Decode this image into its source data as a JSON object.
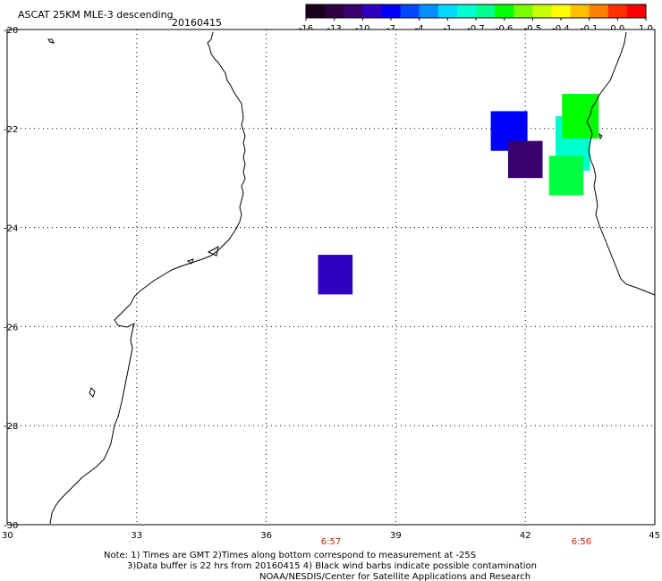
{
  "header": {
    "title": "ASCAT 25KM MLE-3 descending",
    "date": "20160415"
  },
  "colorbar": {
    "colors": [
      "#1a001a",
      "#2d0040",
      "#3a0070",
      "#3000c0",
      "#0000ff",
      "#0048ff",
      "#0090ff",
      "#00d8ff",
      "#00ffd0",
      "#00ff90",
      "#00ff00",
      "#78ff00",
      "#c8ff00",
      "#ffff00",
      "#ffc000",
      "#ff8000",
      "#ff3000",
      "#ff0000"
    ],
    "labels": [
      "-16",
      "-13",
      "-10",
      "-7",
      "-4",
      "-1",
      "-0.7",
      "-0.6",
      "-0.5",
      "-0.4",
      "-0.1",
      "0.0",
      "1.0"
    ]
  },
  "map": {
    "lon_range": [
      30,
      45
    ],
    "lat_range": [
      -30,
      -20
    ],
    "x_tick_labels": [
      "30",
      "33",
      "36",
      "39",
      "42",
      "45"
    ],
    "y_tick_labels": [
      "-20",
      "-22",
      "-24",
      "-26",
      "-28",
      "-30"
    ],
    "time_labels": [
      {
        "text": "6:57",
        "lon": 37.5
      },
      {
        "text": "6:56",
        "lon": 43.3
      }
    ],
    "cells": [
      {
        "lon0": 41.2,
        "lat0": -21.65,
        "lon1": 42.05,
        "lat1": -22.45,
        "color": "#0000ff"
      },
      {
        "lon0": 41.6,
        "lat0": -22.25,
        "lon1": 42.4,
        "lat1": -23.0,
        "color": "#3a0070"
      },
      {
        "lon0": 42.7,
        "lat0": -21.75,
        "lon1": 43.5,
        "lat1": -22.85,
        "color": "#00ffd0"
      },
      {
        "lon0": 42.55,
        "lat0": -22.55,
        "lon1": 43.35,
        "lat1": -23.35,
        "color": "#00ff40"
      },
      {
        "lon0": 42.85,
        "lat0": -21.3,
        "lon1": 43.7,
        "lat1": -22.2,
        "color": "#00ff00"
      },
      {
        "lon0": 37.2,
        "lat0": -24.55,
        "lon1": 38.0,
        "lat1": -25.35,
        "color": "#3000c0"
      }
    ]
  },
  "notes": {
    "line1": "Note: 1) Times are GMT 2)Times along bottom correspond to measurement at -25S",
    "line2": "3)Data buffer is 22 hrs from 20160415 4) Black wind barbs indicate possible contamination",
    "line3": "NOAA/NESDIS/Center for Satellite Applications and Research"
  }
}
